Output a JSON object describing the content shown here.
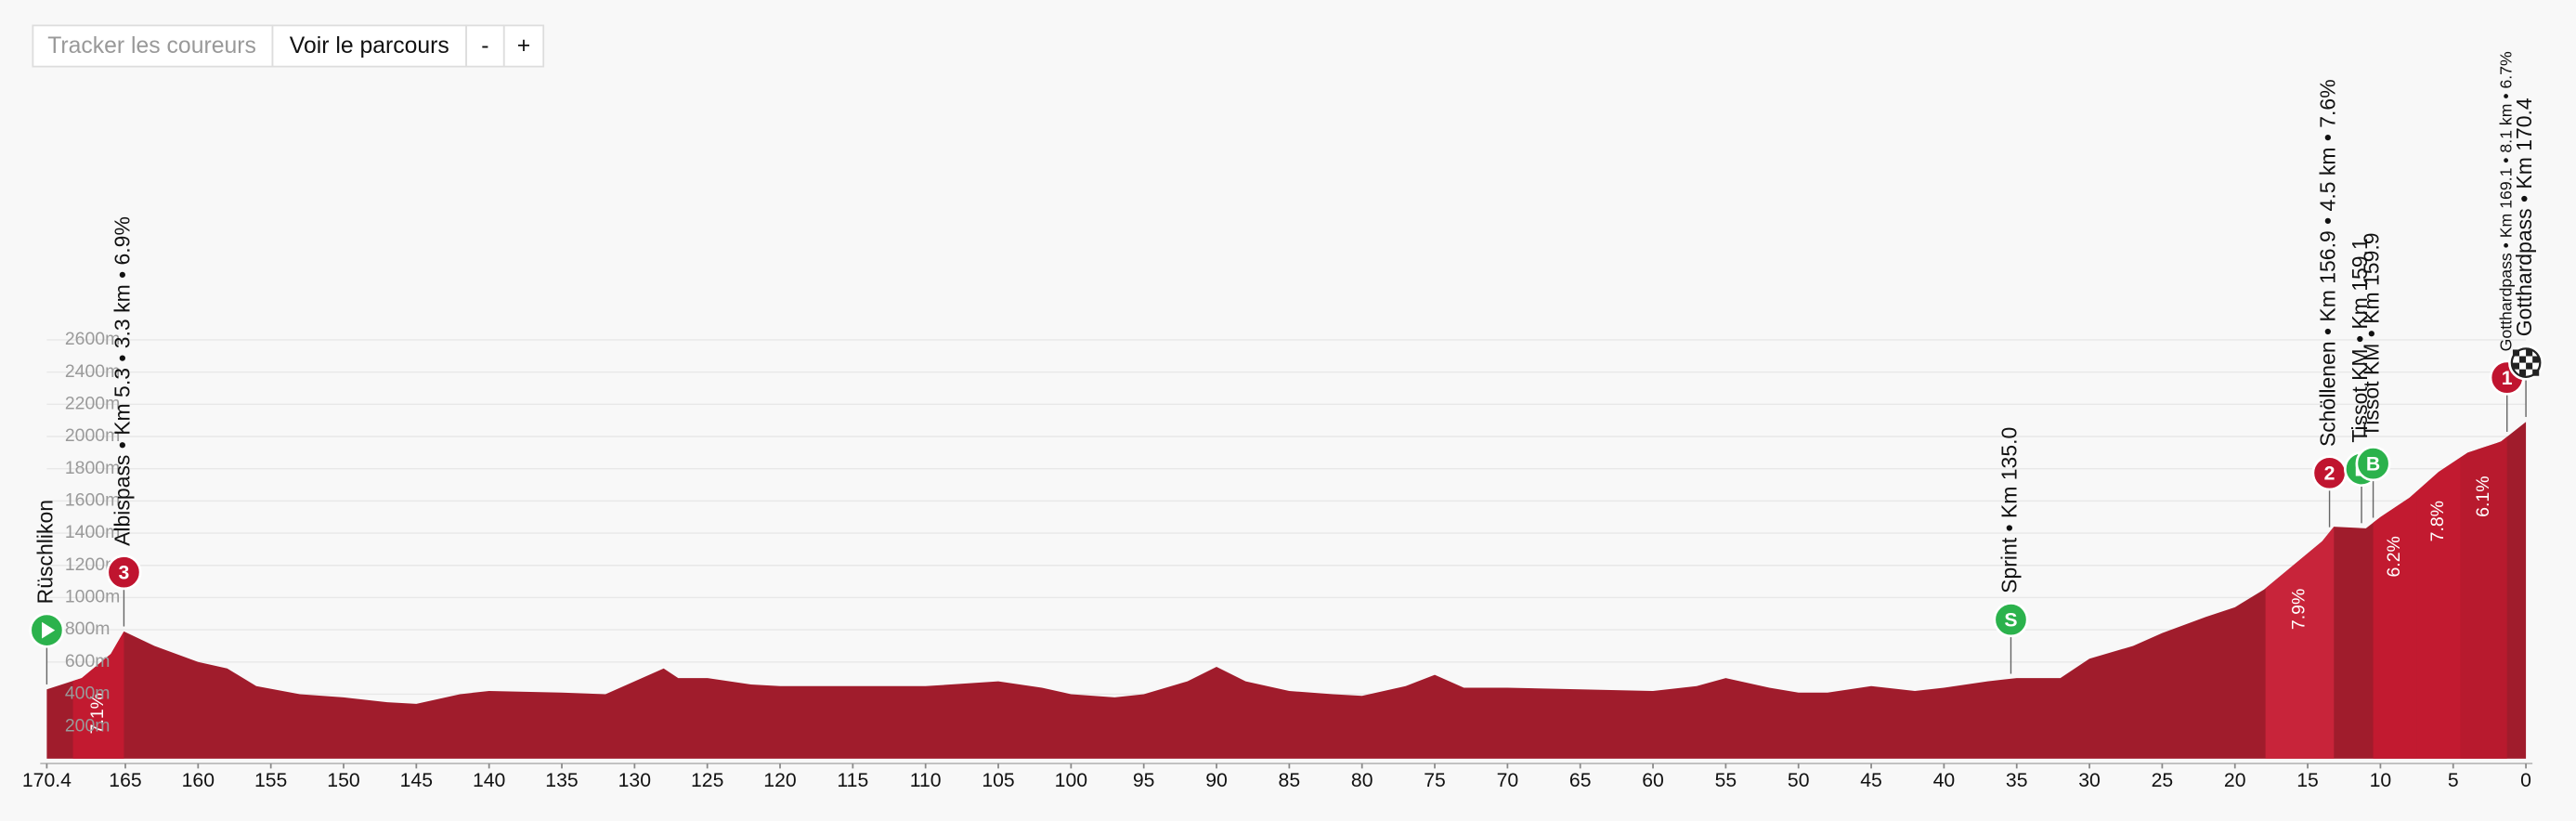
{
  "ui": {
    "buttons": [
      "Tracker les coureurs",
      "Voir le parcours",
      "-",
      "+"
    ]
  },
  "chart_data": {
    "type": "area",
    "x": [
      170.4,
      168,
      166,
      165.1,
      163,
      160,
      158,
      156,
      153,
      150,
      147,
      145,
      142,
      140,
      135,
      132,
      130,
      128,
      127,
      125,
      122,
      120,
      115,
      110,
      105,
      102,
      100,
      97,
      95,
      92,
      90,
      88,
      85,
      82,
      80,
      77,
      75,
      73,
      70,
      65,
      60,
      57,
      55,
      52,
      50,
      48,
      45,
      42,
      40,
      37,
      35,
      32,
      30,
      27,
      25,
      22,
      20,
      18,
      16,
      14,
      13.2,
      11,
      10,
      8,
      6,
      4,
      2,
      1.7,
      0
    ],
    "series": [
      {
        "color": "#a01c2c",
        "values": [
          430,
          500,
          650,
          790,
          700,
          600,
          560,
          450,
          400,
          380,
          350,
          340,
          400,
          420,
          410,
          400,
          480,
          560,
          500,
          500,
          460,
          450,
          450,
          450,
          480,
          440,
          400,
          380,
          400,
          480,
          570,
          480,
          420,
          400,
          390,
          450,
          520,
          440,
          440,
          430,
          420,
          450,
          500,
          440,
          410,
          410,
          450,
          420,
          440,
          480,
          500,
          500,
          620,
          700,
          780,
          880,
          940,
          1050,
          1200,
          1350,
          1440,
          1430,
          1500,
          1620,
          1780,
          1900,
          1960,
          1970,
          2091
        ]
      }
    ],
    "xlim": [
      170.4,
      0
    ],
    "ylim": [
      0,
      2600
    ],
    "xticks": [
      170.4,
      165,
      160,
      155,
      150,
      145,
      140,
      135,
      130,
      125,
      120,
      115,
      110,
      105,
      100,
      95,
      90,
      85,
      80,
      75,
      70,
      65,
      60,
      55,
      50,
      45,
      40,
      35,
      30,
      25,
      20,
      15,
      10,
      5,
      0
    ],
    "yticks": [
      {
        "value": 200,
        "label": "200m"
      },
      {
        "value": 400,
        "label": "400m"
      },
      {
        "value": 600,
        "label": "600m"
      },
      {
        "value": 800,
        "label": "800m"
      },
      {
        "value": 1000,
        "label": "1000m"
      },
      {
        "value": 1200,
        "label": "1200m"
      },
      {
        "value": 1400,
        "label": "1400m"
      },
      {
        "value": 1600,
        "label": "1600m"
      },
      {
        "value": 1800,
        "label": "1800m"
      },
      {
        "value": 2000,
        "label": "2000m"
      },
      {
        "value": 2200,
        "label": "2200m"
      },
      {
        "value": 2400,
        "label": "2400m"
      },
      {
        "value": 2600,
        "label": "2600m"
      }
    ],
    "grid": true,
    "climbs": [
      {
        "start": 168.6,
        "end": 165.1,
        "label": "7.1%",
        "color": "#c21a30"
      },
      {
        "start": 17.9,
        "end": 13.2,
        "label": "7.9%",
        "color": "#c8243a"
      },
      {
        "start": 10.5,
        "end": 7.5,
        "label": "6.2%",
        "color": "#c21a30"
      },
      {
        "start": 7.5,
        "end": 4.5,
        "label": "7.8%",
        "color": "#c21a30"
      },
      {
        "start": 4.5,
        "end": 1.3,
        "label": "6.1%",
        "color": "#b81a2e"
      }
    ],
    "markers": [
      {
        "km": 170.4,
        "label": "Rüschlikon",
        "icon": "start",
        "color": "#2bb24c"
      },
      {
        "km": 165.1,
        "label": "Albispass • Km 5.3 • 3.3 km • 6.9%",
        "badge": "3",
        "color": "#c0142f"
      },
      {
        "km": 35.4,
        "label": "Sprint • Km 135.0",
        "badge": "S",
        "color": "#2bb24c"
      },
      {
        "km": 13.5,
        "label": "Schöllenen • Km 156.9 • 4.5 km • 7.6%",
        "badge": "2",
        "color": "#c0142f"
      },
      {
        "km": 11.3,
        "label": "Tissot KM • Km 159.1",
        "badge": "B",
        "color": "#2bb24c"
      },
      {
        "km": 10.5,
        "label": "Tissot KM • Km 159.9",
        "badge": "B",
        "color": "#2bb24c"
      },
      {
        "km": 1.3,
        "label": "Gotthardpass • Km 169.1 • 8.1 km • 6.7%",
        "badge": "1",
        "color": "#c0142f"
      },
      {
        "km": 0,
        "label": "Gotthardpass • Km 170.4",
        "icon": "finish",
        "color": "#222222"
      }
    ]
  }
}
